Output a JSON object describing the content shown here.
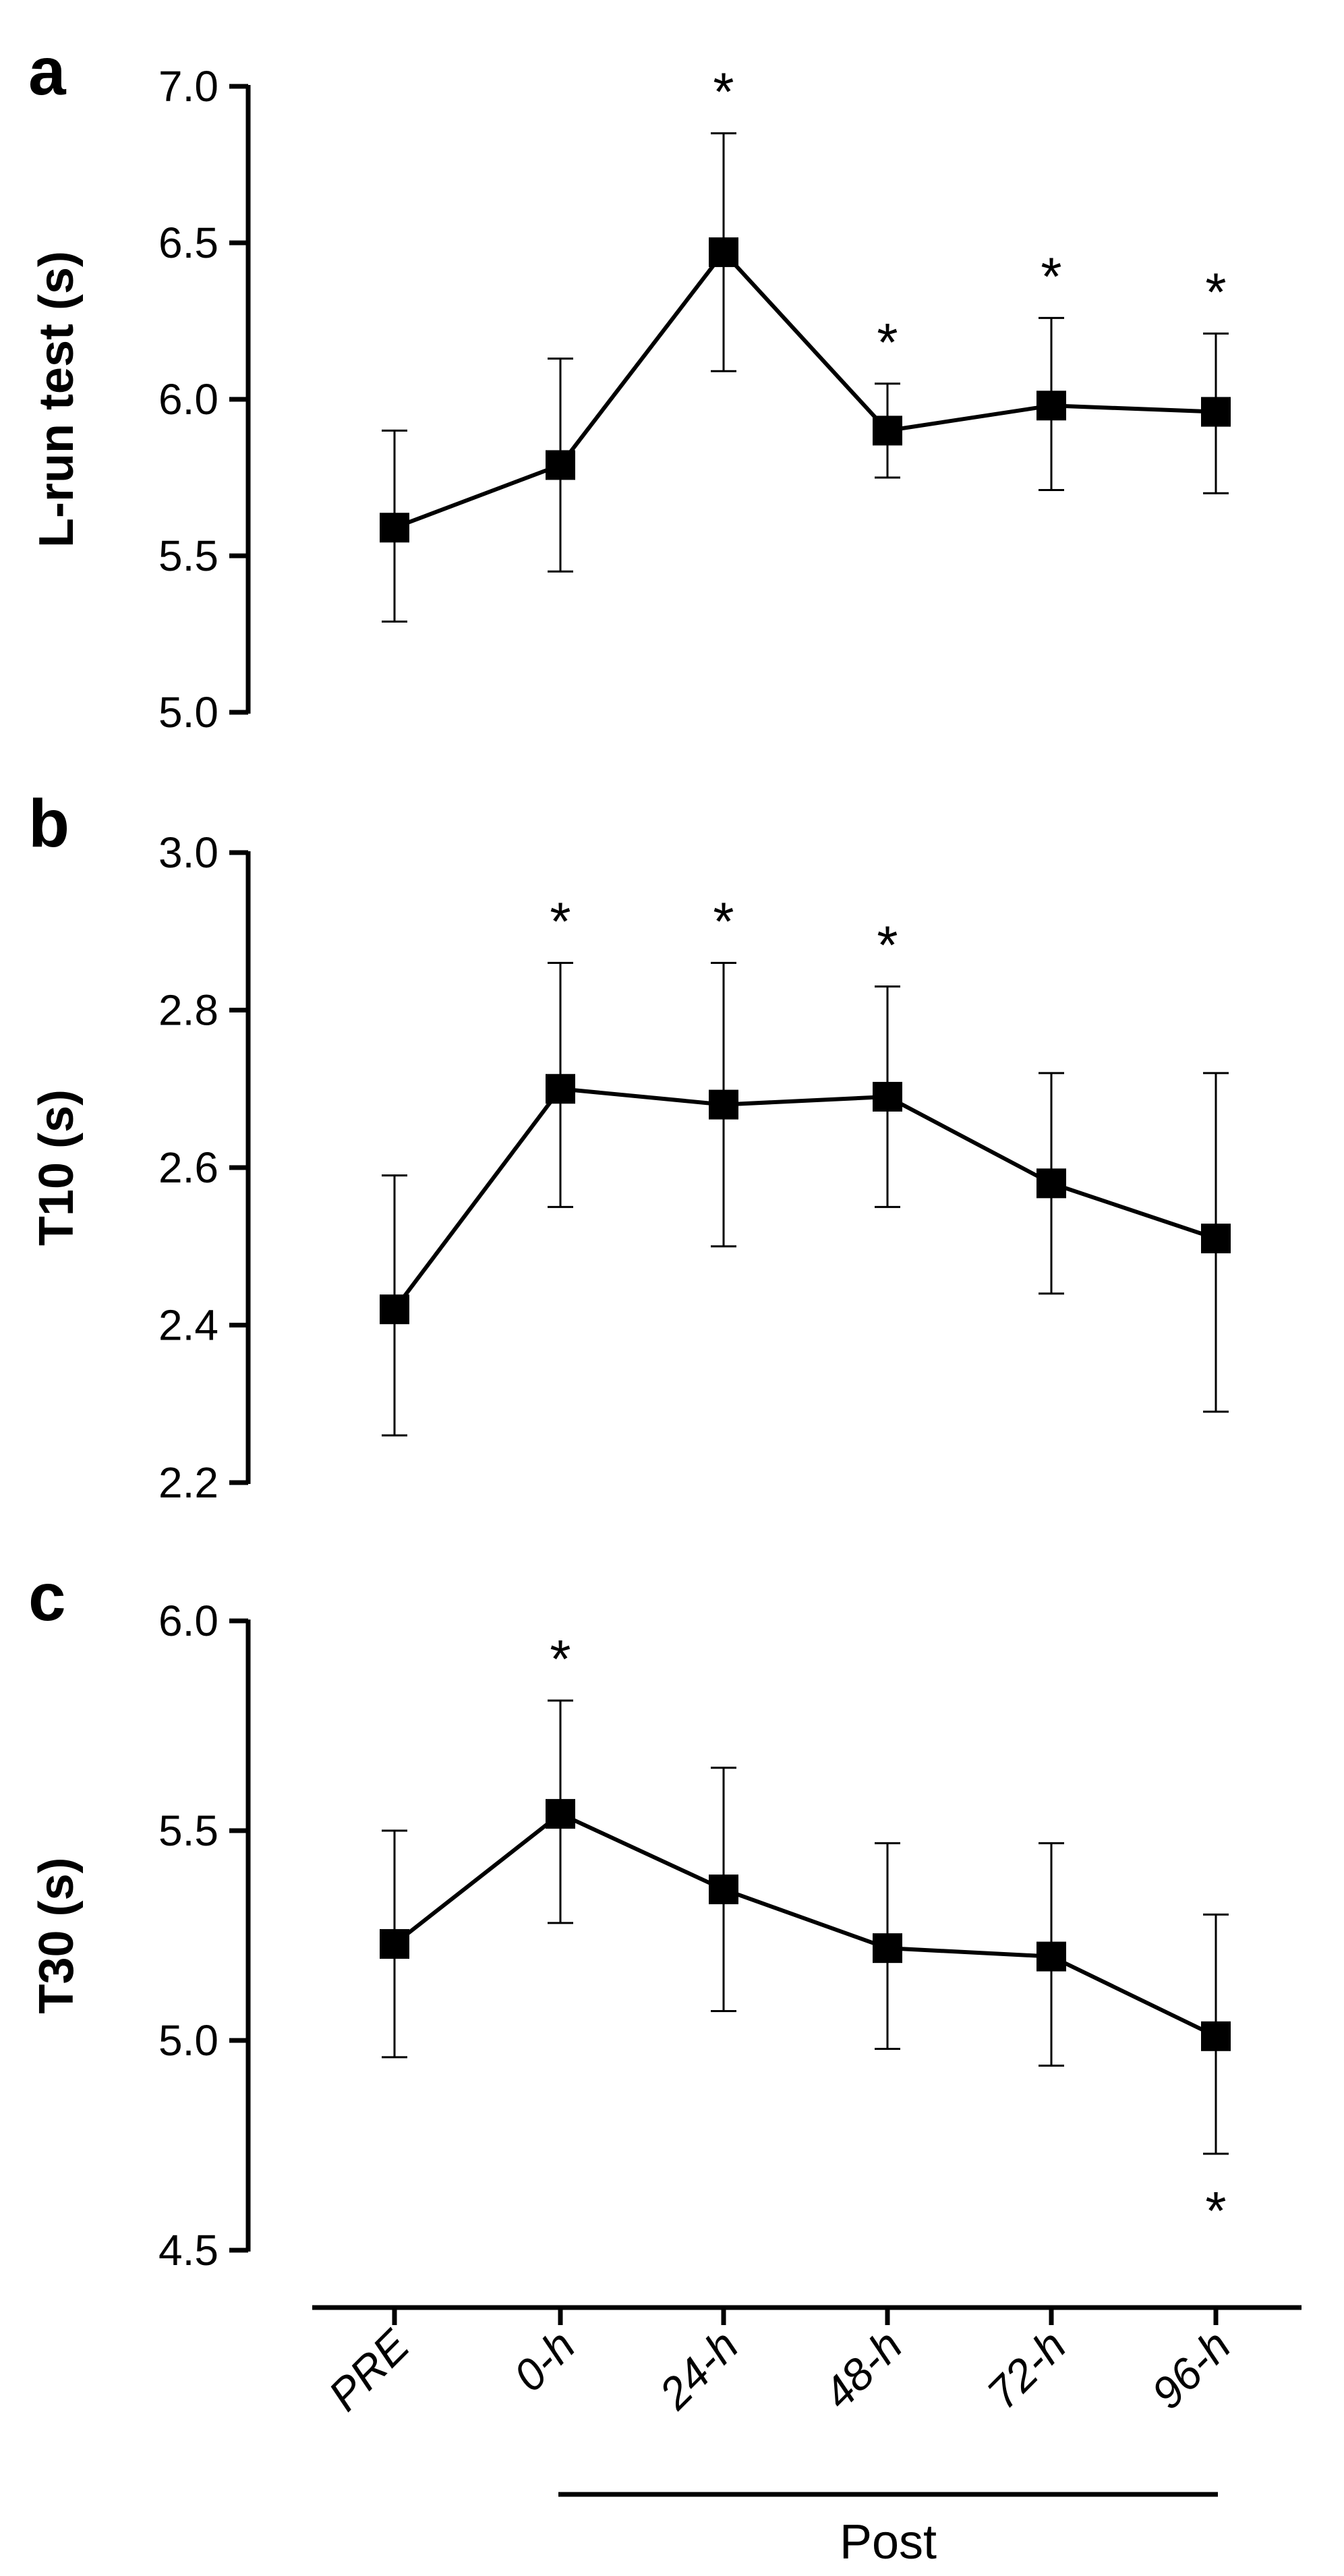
{
  "chart_data": [
    {
      "panel": "a",
      "type": "line",
      "ylabel": "L-run test (s)",
      "categories": [
        "PRE",
        "0-h",
        "24-h",
        "48-h",
        "72-h",
        "96-h"
      ],
      "values": [
        5.59,
        5.79,
        6.47,
        5.9,
        5.98,
        5.96
      ],
      "error_low": [
        5.29,
        5.45,
        6.09,
        5.75,
        5.71,
        5.7
      ],
      "error_high": [
        5.9,
        6.13,
        6.85,
        6.05,
        6.26,
        6.21
      ],
      "significance": [
        "",
        "",
        "*",
        "*",
        "*",
        "*"
      ],
      "ylim": [
        5.0,
        7.0
      ],
      "yticks": [
        "5.0",
        "5.5",
        "6.0",
        "6.5",
        "7.0"
      ]
    },
    {
      "panel": "b",
      "type": "line",
      "ylabel": "T10 (s)",
      "categories": [
        "PRE",
        "0-h",
        "24-h",
        "48-h",
        "72-h",
        "96-h"
      ],
      "values": [
        2.42,
        2.7,
        2.68,
        2.69,
        2.58,
        2.51
      ],
      "error_low": [
        2.26,
        2.55,
        2.5,
        2.55,
        2.44,
        2.29
      ],
      "error_high": [
        2.59,
        2.86,
        2.86,
        2.83,
        2.72,
        2.72
      ],
      "significance": [
        "",
        "*",
        "*",
        "*",
        "",
        ""
      ],
      "ylim": [
        2.2,
        3.0
      ],
      "yticks": [
        "2.2",
        "2.4",
        "2.6",
        "2.8",
        "3.0"
      ]
    },
    {
      "panel": "c",
      "type": "line",
      "ylabel": "T30 (s)",
      "categories": [
        "PRE",
        "0-h",
        "24-h",
        "48-h",
        "72-h",
        "96-h"
      ],
      "values": [
        5.23,
        5.54,
        5.36,
        5.22,
        5.2,
        5.01
      ],
      "error_low": [
        4.96,
        5.28,
        5.07,
        4.98,
        4.94,
        4.73
      ],
      "error_high": [
        5.5,
        5.81,
        5.65,
        5.47,
        5.47,
        5.3
      ],
      "significance": [
        "",
        "*",
        "",
        "",
        "",
        "*"
      ],
      "significance_position": [
        "",
        "above",
        "",
        "",
        "",
        "below"
      ],
      "ylim": [
        4.5,
        6.0
      ],
      "yticks": [
        "4.5",
        "5.0",
        "5.5",
        "6.0"
      ]
    }
  ],
  "x_axis": {
    "tick_labels": [
      "PRE",
      "0-h",
      "24-h",
      "48-h",
      "72-h",
      "96-h"
    ],
    "group_label": "Post"
  }
}
